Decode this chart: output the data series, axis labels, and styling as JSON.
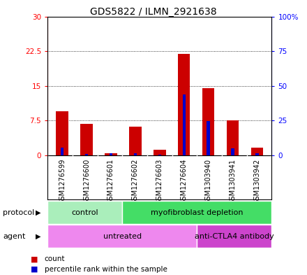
{
  "title": "GDS5822 / ILMN_2921638",
  "samples": [
    "GSM1276599",
    "GSM1276600",
    "GSM1276601",
    "GSM1276602",
    "GSM1276603",
    "GSM1276604",
    "GSM1303940",
    "GSM1303941",
    "GSM1303942"
  ],
  "counts": [
    9.5,
    6.8,
    0.4,
    6.2,
    1.2,
    22.0,
    14.5,
    7.5,
    1.6
  ],
  "percentiles": [
    5.8,
    1.0,
    1.3,
    1.3,
    0.3,
    44.0,
    24.5,
    5.0,
    1.3
  ],
  "ylim_left": [
    0,
    30
  ],
  "ylim_right": [
    0,
    100
  ],
  "yticks_left": [
    0,
    7.5,
    15,
    22.5,
    30
  ],
  "yticks_right": [
    0,
    25,
    50,
    75,
    100
  ],
  "ytick_labels_left": [
    "0",
    "7.5",
    "15",
    "22.5",
    "30"
  ],
  "ytick_labels_right": [
    "0",
    "25",
    "50",
    "75",
    "100%"
  ],
  "protocol_groups": [
    {
      "label": "control",
      "start": 0,
      "end": 3,
      "color": "#aaeebb"
    },
    {
      "label": "myofibroblast depletion",
      "start": 3,
      "end": 9,
      "color": "#44dd66"
    }
  ],
  "agent_groups": [
    {
      "label": "untreated",
      "start": 0,
      "end": 6,
      "color": "#ee88ee"
    },
    {
      "label": "anti-CTLA4 antibody",
      "start": 6,
      "end": 9,
      "color": "#cc44cc"
    }
  ],
  "bar_color": "#cc0000",
  "percentile_color": "#0000cc",
  "bar_width": 0.5,
  "sample_bg": "#cccccc",
  "plot_bg": "#ffffff",
  "legend_items": [
    "count",
    "percentile rank within the sample"
  ],
  "legend_colors": [
    "#cc0000",
    "#0000cc"
  ]
}
